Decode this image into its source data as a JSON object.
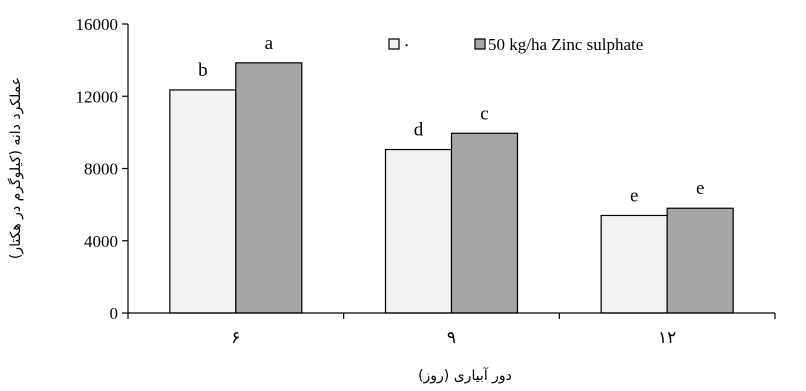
{
  "chart_data": {
    "type": "bar",
    "categories": [
      "۶",
      "۹",
      "۱۲"
    ],
    "series": [
      {
        "name": "۰",
        "values": [
          12350,
          9050,
          5400
        ],
        "labels": [
          "b",
          "d",
          "e"
        ],
        "color": "#f2f2f2"
      },
      {
        "name": "50 kg/ha  Zinc sulphate",
        "values": [
          13850,
          9950,
          5800
        ],
        "labels": [
          "a",
          "c",
          "e"
        ],
        "color": "#a6a6a6"
      }
    ],
    "xlabel": "دور آبیاری (روز)",
    "ylabel": "عملکرد دانه (کیلوگرم در هکتار)",
    "ylim": [
      0,
      16000
    ],
    "yticks": [
      0,
      4000,
      8000,
      12000,
      16000
    ],
    "ytick_labels": [
      "0",
      "4000",
      "8000",
      "12000",
      "16000"
    ],
    "grid": false,
    "legend_position": "top-right"
  }
}
